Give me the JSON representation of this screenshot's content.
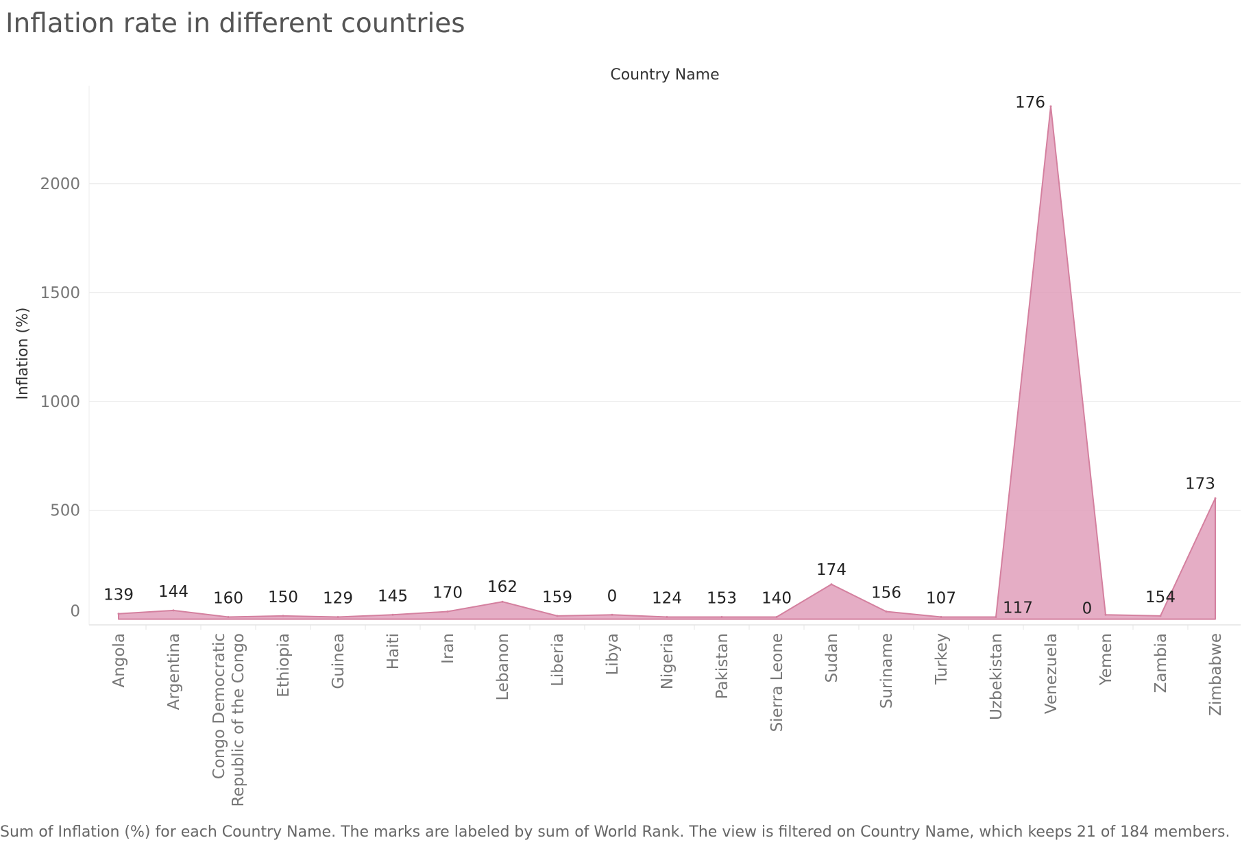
{
  "title": "Inflation rate in different countries",
  "caption": "Sum of Inflation (%) for each Country Name.  The marks are labeled by sum of World Rank. The view is filtered on Country Name, which keeps 21 of 184 members.",
  "colors": {
    "area_fill": "#e09fbb",
    "area_stroke": "#d4809f",
    "grid": "#ececec"
  },
  "chart_data": {
    "type": "area",
    "x_header": "Country Name",
    "ylabel": "Inflation (%)",
    "ylim": [
      -20,
      2450
    ],
    "yticks": [
      0,
      500,
      1000,
      1500,
      2000
    ],
    "gridlines": true,
    "categories": [
      "Angola",
      "Argentina",
      "Congo Democratic Republic of the Congo",
      "Ethiopia",
      "Guinea",
      "Haiti",
      "Iran",
      "Lebanon",
      "Liberia",
      "Libya",
      "Nigeria",
      "Pakistan",
      "Sierra Leone",
      "Sudan",
      "Suriname",
      "Turkey",
      "Uzbekistan",
      "Venezuela",
      "Yemen",
      "Zambia",
      "Zimbabwe"
    ],
    "category_lines": [
      [
        "Angola"
      ],
      [
        "Argentina"
      ],
      [
        "Congo Democratic",
        "Republic of the Congo"
      ],
      [
        "Ethiopia"
      ],
      [
        "Guinea"
      ],
      [
        "Haiti"
      ],
      [
        "Iran"
      ],
      [
        "Lebanon"
      ],
      [
        "Liberia"
      ],
      [
        "Libya"
      ],
      [
        "Nigeria"
      ],
      [
        "Pakistan"
      ],
      [
        "Sierra Leone"
      ],
      [
        "Sudan"
      ],
      [
        "Suriname"
      ],
      [
        "Turkey"
      ],
      [
        "Uzbekistan"
      ],
      [
        "Venezuela"
      ],
      [
        "Yemen"
      ],
      [
        "Zambia"
      ],
      [
        "Zimbabwe"
      ]
    ],
    "series": [
      {
        "values": [
          25,
          40,
          10,
          15,
          10,
          20,
          35,
          80,
          15,
          20,
          10,
          10,
          10,
          160,
          35,
          10,
          10,
          2355,
          20,
          15,
          555
        ]
      }
    ],
    "labels": [
      "139",
      "144",
      "160",
      "150",
      "129",
      "145",
      "170",
      "162",
      "159",
      "0",
      "124",
      "153",
      "140",
      "174",
      "156",
      "107",
      "117",
      "176",
      "0",
      "154",
      "173"
    ]
  }
}
